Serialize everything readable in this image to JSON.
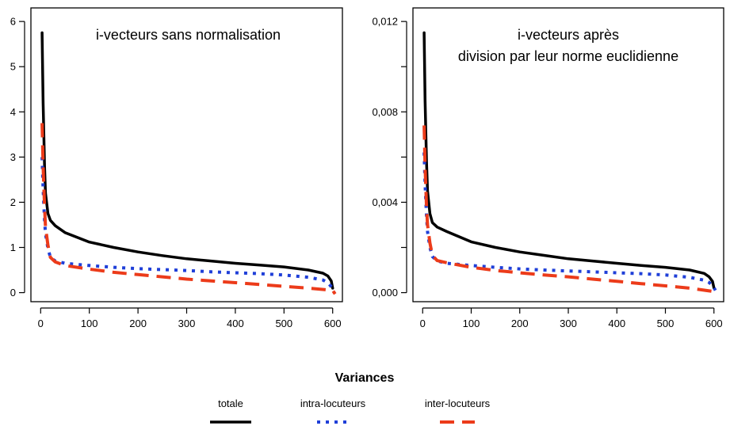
{
  "legend": {
    "title": "Variances",
    "entries": [
      {
        "label": "totale",
        "color": "#000000",
        "style": "solid"
      },
      {
        "label": "intra-locuteurs",
        "color": "#1f3fd8",
        "style": "dotted"
      },
      {
        "label": "inter-locuteurs",
        "color": "#ec3b1a",
        "style": "dashed"
      }
    ]
  },
  "chart_data": [
    {
      "type": "line",
      "title": "i-vecteurs sans normalisation",
      "xlabel": "",
      "ylabel": "",
      "xlim": [
        -20,
        620
      ],
      "ylim": [
        -0.2,
        6.3
      ],
      "x_ticks": [
        0,
        100,
        200,
        300,
        400,
        500,
        600
      ],
      "x_tick_labels": [
        "0",
        "100",
        "200",
        "300",
        "400",
        "500",
        "600"
      ],
      "y_ticks": [
        0,
        1,
        2,
        3,
        4,
        5,
        6
      ],
      "y_tick_labels": [
        "0",
        "1",
        "2",
        "3",
        "4",
        "5",
        "6"
      ],
      "grid": false,
      "series": [
        {
          "name": "totale",
          "color": "#000000",
          "style": "solid",
          "x": [
            3,
            5,
            8,
            10,
            15,
            20,
            30,
            50,
            100,
            150,
            200,
            250,
            300,
            350,
            400,
            450,
            500,
            550,
            580,
            590,
            597,
            600
          ],
          "y": [
            5.75,
            4.2,
            2.8,
            2.2,
            1.75,
            1.6,
            1.48,
            1.33,
            1.12,
            1.0,
            0.9,
            0.82,
            0.75,
            0.7,
            0.65,
            0.61,
            0.57,
            0.5,
            0.43,
            0.37,
            0.26,
            0.1
          ]
        },
        {
          "name": "intra-locuteurs",
          "color": "#1f3fd8",
          "style": "dotted",
          "x": [
            3,
            5,
            8,
            10,
            15,
            20,
            30,
            50,
            100,
            150,
            200,
            250,
            300,
            350,
            400,
            450,
            500,
            550,
            580,
            590,
            598,
            603
          ],
          "y": [
            3.0,
            2.3,
            1.6,
            1.3,
            0.98,
            0.78,
            0.7,
            0.65,
            0.6,
            0.56,
            0.53,
            0.51,
            0.49,
            0.46,
            0.44,
            0.42,
            0.39,
            0.34,
            0.28,
            0.22,
            0.12,
            0.0
          ]
        },
        {
          "name": "inter-locuteurs",
          "color": "#ec3b1a",
          "style": "dashed",
          "x": [
            3,
            5,
            8,
            10,
            15,
            20,
            30,
            50,
            100,
            150,
            200,
            250,
            300,
            350,
            400,
            450,
            500,
            550,
            600,
            605
          ],
          "y": [
            3.75,
            2.8,
            1.9,
            1.45,
            1.05,
            0.78,
            0.68,
            0.6,
            0.52,
            0.45,
            0.4,
            0.35,
            0.3,
            0.26,
            0.22,
            0.18,
            0.14,
            0.1,
            0.05,
            -0.03
          ]
        }
      ]
    },
    {
      "type": "line",
      "title": "i-vecteurs après\ndivision par leur norme euclidienne",
      "xlabel": "",
      "ylabel": "",
      "xlim": [
        -20,
        620
      ],
      "ylim": [
        -0.0004,
        0.0126
      ],
      "x_ticks": [
        0,
        100,
        200,
        300,
        400,
        500,
        600
      ],
      "x_tick_labels": [
        "0",
        "100",
        "200",
        "300",
        "400",
        "500",
        "600"
      ],
      "y_ticks": [
        0.0,
        0.002,
        0.004,
        0.006,
        0.008,
        0.01,
        0.012
      ],
      "y_tick_labels": [
        "0,000",
        "",
        "0,004",
        "",
        "0,008",
        "",
        "0,012"
      ],
      "grid": false,
      "series": [
        {
          "name": "totale",
          "color": "#000000",
          "style": "solid",
          "x": [
            3,
            5,
            8,
            10,
            15,
            20,
            30,
            50,
            100,
            150,
            200,
            250,
            300,
            350,
            400,
            450,
            500,
            550,
            580,
            590,
            597,
            600
          ],
          "y": [
            0.0115,
            0.0085,
            0.0058,
            0.0045,
            0.0035,
            0.0031,
            0.0029,
            0.0027,
            0.00225,
            0.002,
            0.0018,
            0.00165,
            0.0015,
            0.0014,
            0.0013,
            0.0012,
            0.00112,
            0.001,
            0.00085,
            0.0007,
            0.0005,
            0.0002
          ]
        },
        {
          "name": "intra-locuteurs",
          "color": "#1f3fd8",
          "style": "dotted",
          "x": [
            3,
            5,
            8,
            10,
            15,
            20,
            30,
            50,
            100,
            150,
            200,
            250,
            300,
            350,
            400,
            450,
            500,
            550,
            580,
            590,
            598,
            603
          ],
          "y": [
            0.0062,
            0.0048,
            0.0034,
            0.0027,
            0.002,
            0.0016,
            0.0014,
            0.0013,
            0.0012,
            0.00112,
            0.00105,
            0.001,
            0.00096,
            0.00092,
            0.00088,
            0.00084,
            0.00078,
            0.00068,
            0.00055,
            0.00045,
            0.0003,
            0.0001
          ]
        },
        {
          "name": "inter-locuteurs",
          "color": "#ec3b1a",
          "style": "dashed",
          "x": [
            3,
            5,
            8,
            10,
            15,
            20,
            30,
            50,
            100,
            150,
            200,
            250,
            300,
            350,
            400,
            450,
            500,
            550,
            600,
            605
          ],
          "y": [
            0.0074,
            0.0056,
            0.0038,
            0.003,
            0.0022,
            0.00165,
            0.00142,
            0.00132,
            0.00112,
            0.00098,
            0.00088,
            0.00078,
            0.0007,
            0.0006,
            0.0005,
            0.0004,
            0.0003,
            0.0002,
            5e-05,
            -8e-05
          ]
        }
      ]
    }
  ]
}
